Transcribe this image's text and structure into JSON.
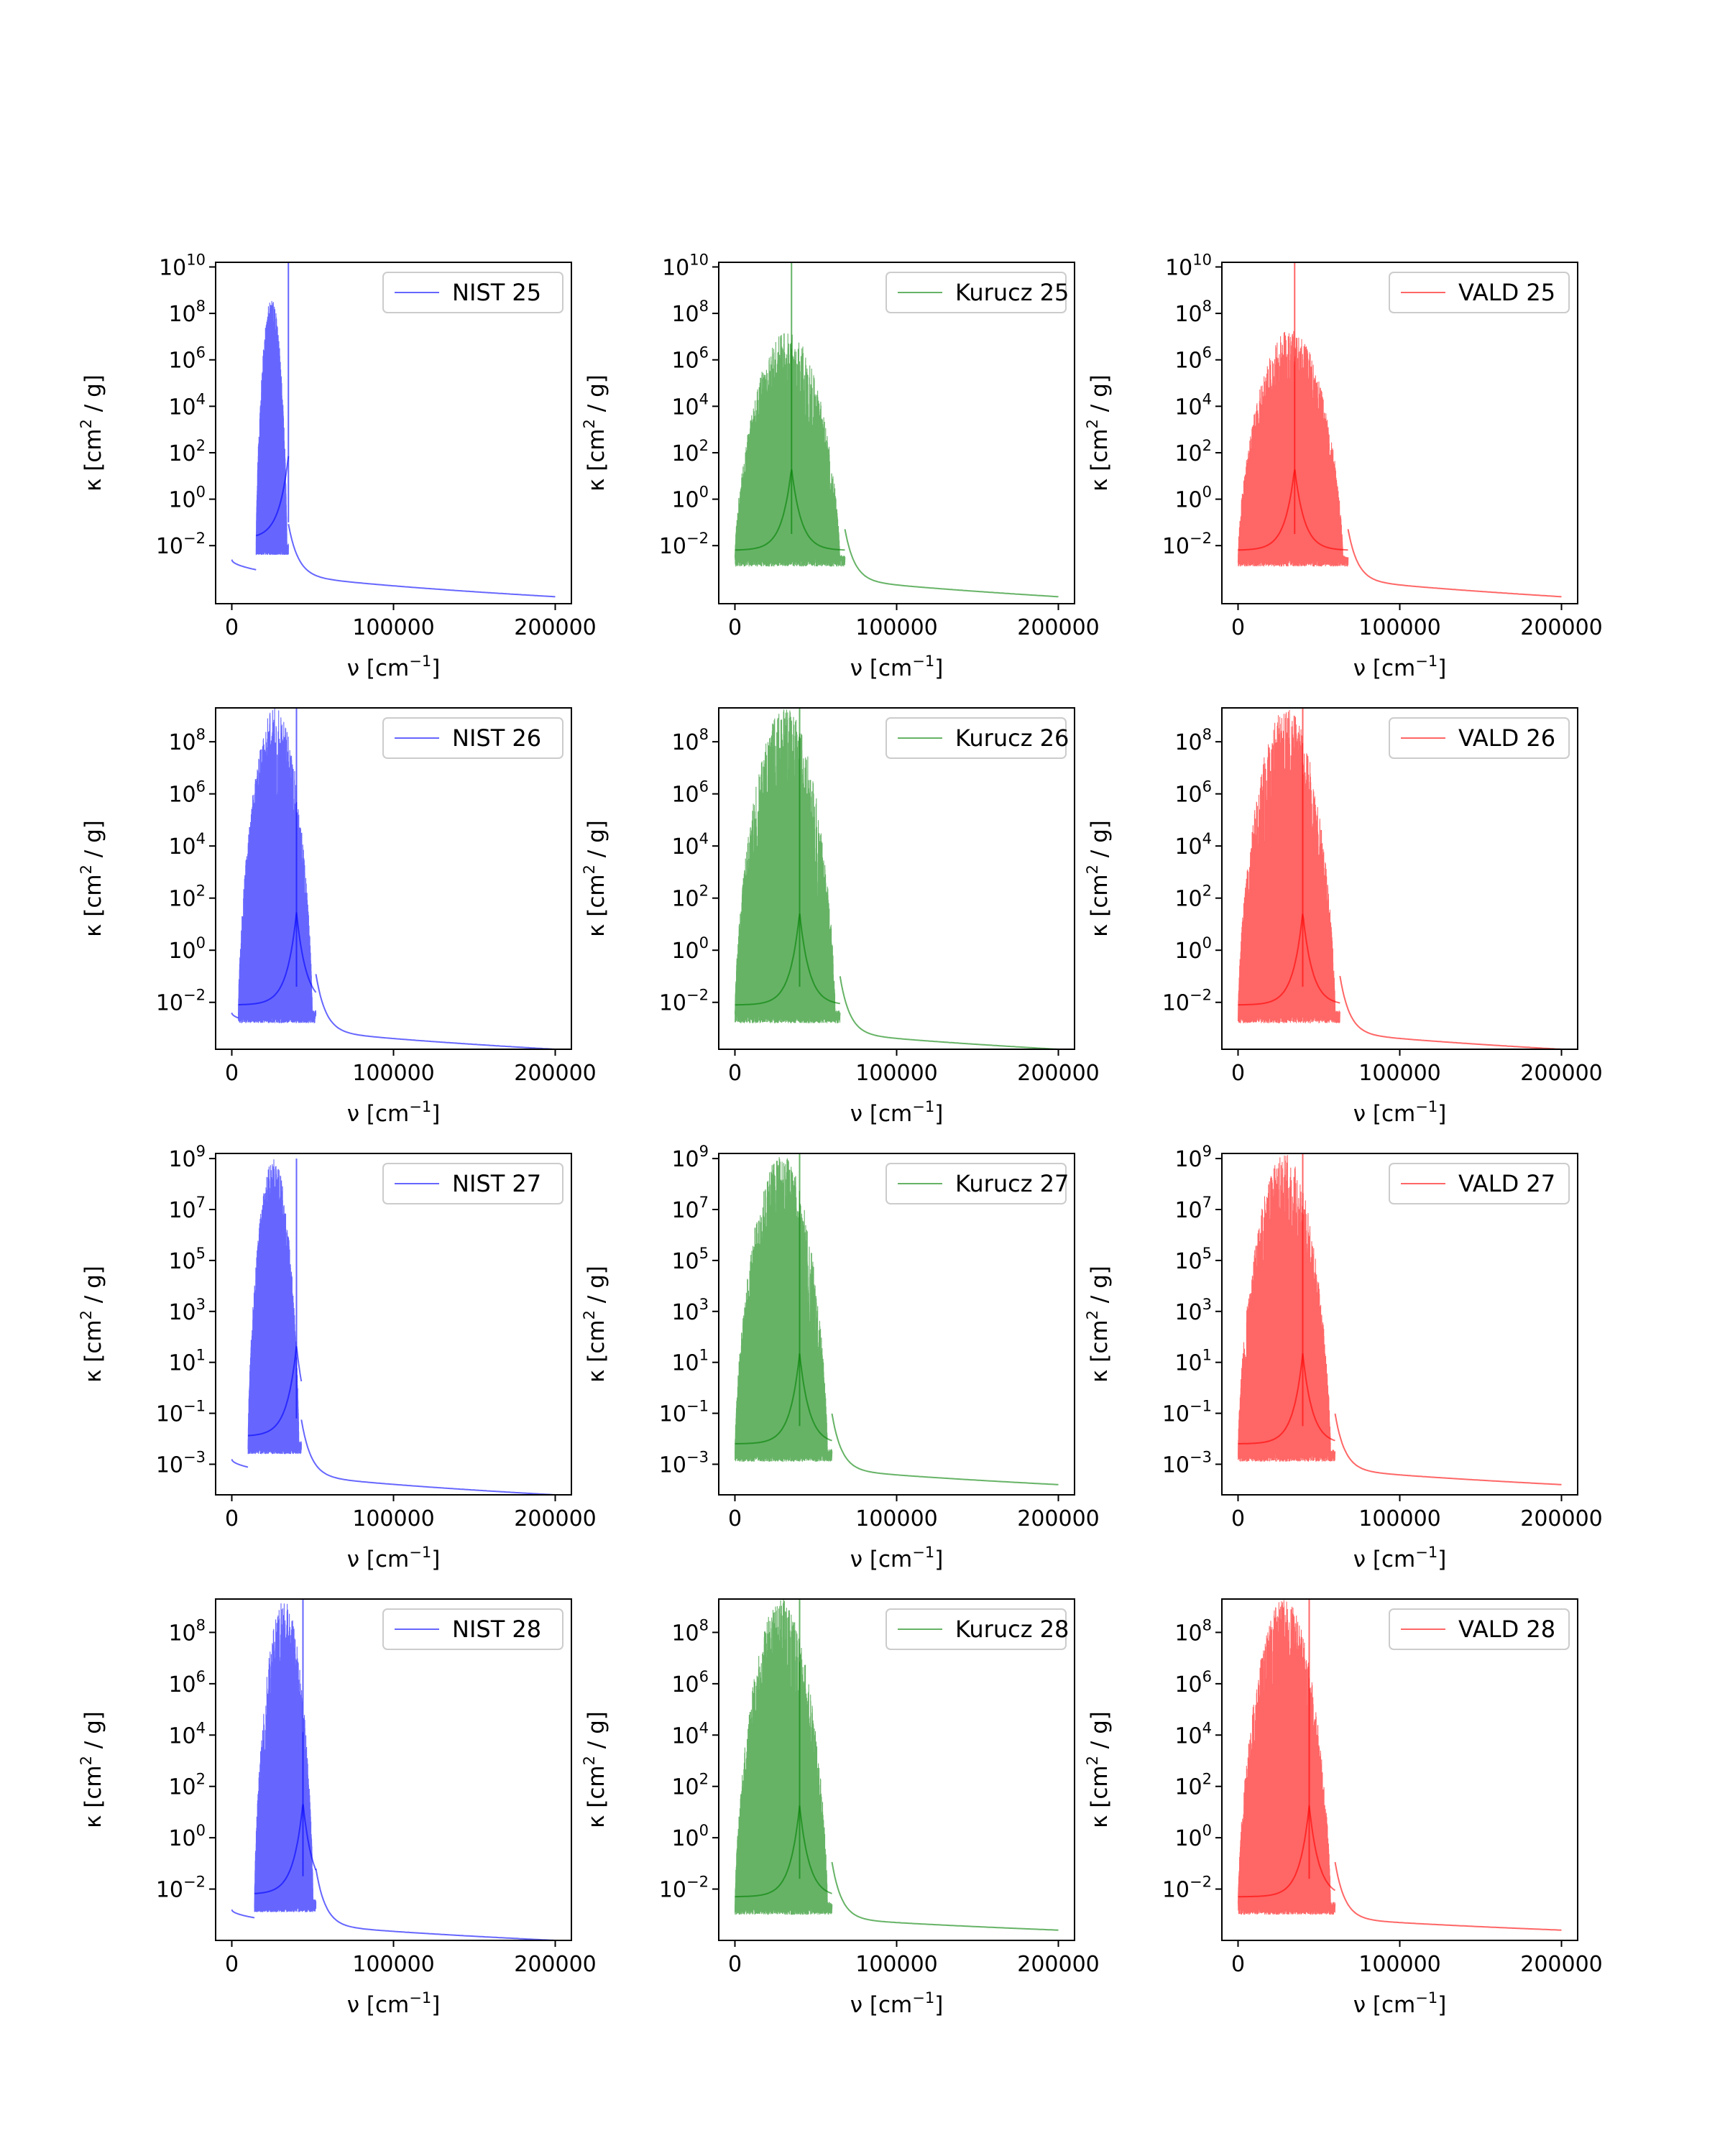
{
  "figure": {
    "axis_labels": {
      "x_main": "ν [cm",
      "x_sup": "−1",
      "x_end": "]",
      "y_main": "κ [cm",
      "y_sup": "2",
      "y_end": " / g]"
    }
  },
  "chart_data": [
    {
      "type": "line",
      "legend": "NIST 25",
      "color": "#0000ff",
      "opacity": 0.6,
      "xlim": [
        -10000,
        210000
      ],
      "ylim_log10": [
        -4.5,
        10.2
      ],
      "xticks": [
        0,
        100000,
        200000
      ],
      "yticks": [
        {
          "base": "10",
          "exp": "−2",
          "v": -2
        },
        {
          "base": "10",
          "exp": "0",
          "v": 0
        },
        {
          "base": "10",
          "exp": "2",
          "v": 2
        },
        {
          "base": "10",
          "exp": "4",
          "v": 4
        },
        {
          "base": "10",
          "exp": "6",
          "v": 6
        },
        {
          "base": "10",
          "exp": "8",
          "v": 8
        },
        {
          "base": "10",
          "exp": "10",
          "v": 10
        }
      ],
      "legend_loc": "upper right",
      "series": {
        "x_start": 0,
        "x_end": 200000,
        "baseline_start_log10": -2.6,
        "baseline_end_log10": -4.2,
        "peak_x": 35000,
        "peak_log10": 10.2,
        "band_start": 15000,
        "band_end": 35000,
        "band_top_log10": 8.7,
        "band_floor_log10": -2.0
      }
    },
    {
      "type": "line",
      "legend": "Kurucz 25",
      "color": "#008000",
      "opacity": 0.6,
      "xlim": [
        -10000,
        210000
      ],
      "ylim_log10": [
        -4.5,
        10.2
      ],
      "xticks": [
        0,
        100000,
        200000
      ],
      "yticks": [
        {
          "base": "10",
          "exp": "−2",
          "v": -2
        },
        {
          "base": "10",
          "exp": "0",
          "v": 0
        },
        {
          "base": "10",
          "exp": "2",
          "v": 2
        },
        {
          "base": "10",
          "exp": "4",
          "v": 4
        },
        {
          "base": "10",
          "exp": "6",
          "v": 6
        },
        {
          "base": "10",
          "exp": "8",
          "v": 8
        },
        {
          "base": "10",
          "exp": "10",
          "v": 10
        }
      ],
      "legend_loc": "upper right",
      "series": {
        "x_start": 0,
        "x_end": 200000,
        "baseline_start_log10": -2.5,
        "baseline_end_log10": -4.2,
        "peak_x": 35000,
        "peak_log10": 10.2,
        "band_start": 0,
        "band_end": 68000,
        "band_top_log10": 7.2,
        "band_floor_log10": -2.5
      }
    },
    {
      "type": "line",
      "legend": "VALD 25",
      "color": "#ff0000",
      "opacity": 0.6,
      "xlim": [
        -10000,
        210000
      ],
      "ylim_log10": [
        -4.5,
        10.2
      ],
      "xticks": [
        0,
        100000,
        200000
      ],
      "yticks": [
        {
          "base": "10",
          "exp": "−2",
          "v": -2
        },
        {
          "base": "10",
          "exp": "0",
          "v": 0
        },
        {
          "base": "10",
          "exp": "2",
          "v": 2
        },
        {
          "base": "10",
          "exp": "4",
          "v": 4
        },
        {
          "base": "10",
          "exp": "6",
          "v": 6
        },
        {
          "base": "10",
          "exp": "8",
          "v": 8
        },
        {
          "base": "10",
          "exp": "10",
          "v": 10
        }
      ],
      "legend_loc": "upper right",
      "series": {
        "x_start": 0,
        "x_end": 200000,
        "baseline_start_log10": -2.5,
        "baseline_end_log10": -4.2,
        "peak_x": 35000,
        "peak_log10": 10.2,
        "band_start": 0,
        "band_end": 68000,
        "band_top_log10": 7.3,
        "band_floor_log10": -2.5
      }
    },
    {
      "type": "line",
      "legend": "NIST 26",
      "color": "#0000ff",
      "opacity": 0.6,
      "xlim": [
        -10000,
        210000
      ],
      "ylim_log10": [
        -3.8,
        9.3
      ],
      "xticks": [
        0,
        100000,
        200000
      ],
      "yticks": [
        {
          "base": "10",
          "exp": "−2",
          "v": -2
        },
        {
          "base": "10",
          "exp": "0",
          "v": 0
        },
        {
          "base": "10",
          "exp": "2",
          "v": 2
        },
        {
          "base": "10",
          "exp": "4",
          "v": 4
        },
        {
          "base": "10",
          "exp": "6",
          "v": 6
        },
        {
          "base": "10",
          "exp": "8",
          "v": 8
        }
      ],
      "legend_loc": "upper right",
      "series": {
        "x_start": 0,
        "x_end": 200000,
        "baseline_start_log10": -2.4,
        "baseline_end_log10": -3.8,
        "peak_x": 40000,
        "peak_log10": 9.3,
        "band_start": 4000,
        "band_end": 52000,
        "band_top_log10": 9.3,
        "band_floor_log10": -2.4
      }
    },
    {
      "type": "line",
      "legend": "Kurucz 26",
      "color": "#008000",
      "opacity": 0.6,
      "xlim": [
        -10000,
        210000
      ],
      "ylim_log10": [
        -3.8,
        9.3
      ],
      "xticks": [
        0,
        100000,
        200000
      ],
      "yticks": [
        {
          "base": "10",
          "exp": "−2",
          "v": -2
        },
        {
          "base": "10",
          "exp": "0",
          "v": 0
        },
        {
          "base": "10",
          "exp": "2",
          "v": 2
        },
        {
          "base": "10",
          "exp": "4",
          "v": 4
        },
        {
          "base": "10",
          "exp": "6",
          "v": 6
        },
        {
          "base": "10",
          "exp": "8",
          "v": 8
        }
      ],
      "legend_loc": "upper right",
      "series": {
        "x_start": 0,
        "x_end": 200000,
        "baseline_start_log10": -2.4,
        "baseline_end_log10": -3.8,
        "peak_x": 40000,
        "peak_log10": 9.3,
        "band_start": 0,
        "band_end": 65000,
        "band_top_log10": 9.3,
        "band_floor_log10": -2.4
      }
    },
    {
      "type": "line",
      "legend": "VALD 26",
      "color": "#ff0000",
      "opacity": 0.6,
      "xlim": [
        -10000,
        210000
      ],
      "ylim_log10": [
        -3.8,
        9.3
      ],
      "xticks": [
        0,
        100000,
        200000
      ],
      "yticks": [
        {
          "base": "10",
          "exp": "−2",
          "v": -2
        },
        {
          "base": "10",
          "exp": "0",
          "v": 0
        },
        {
          "base": "10",
          "exp": "2",
          "v": 2
        },
        {
          "base": "10",
          "exp": "4",
          "v": 4
        },
        {
          "base": "10",
          "exp": "6",
          "v": 6
        },
        {
          "base": "10",
          "exp": "8",
          "v": 8
        }
      ],
      "legend_loc": "upper right",
      "series": {
        "x_start": 0,
        "x_end": 200000,
        "baseline_start_log10": -2.4,
        "baseline_end_log10": -3.8,
        "peak_x": 40000,
        "peak_log10": 9.3,
        "band_start": 0,
        "band_end": 63000,
        "band_top_log10": 9.3,
        "band_floor_log10": -2.4
      }
    },
    {
      "type": "line",
      "legend": "NIST 27",
      "color": "#0000ff",
      "opacity": 0.6,
      "xlim": [
        -10000,
        210000
      ],
      "ylim_log10": [
        -4.2,
        9.2
      ],
      "xticks": [
        0,
        100000,
        200000
      ],
      "yticks": [
        {
          "base": "10",
          "exp": "−3",
          "v": -3
        },
        {
          "base": "10",
          "exp": "−1",
          "v": -1
        },
        {
          "base": "10",
          "exp": "1",
          "v": 1
        },
        {
          "base": "10",
          "exp": "3",
          "v": 3
        },
        {
          "base": "10",
          "exp": "5",
          "v": 5
        },
        {
          "base": "10",
          "exp": "7",
          "v": 7
        },
        {
          "base": "10",
          "exp": "9",
          "v": 9
        }
      ],
      "legend_loc": "upper right",
      "series": {
        "x_start": 0,
        "x_end": 200000,
        "baseline_start_log10": -2.8,
        "baseline_end_log10": -4.2,
        "peak_x": 40000,
        "peak_log10": 9.0,
        "band_start": 10000,
        "band_end": 43000,
        "band_top_log10": 9.0,
        "band_floor_log10": -2.2
      }
    },
    {
      "type": "line",
      "legend": "Kurucz 27",
      "color": "#008000",
      "opacity": 0.6,
      "xlim": [
        -10000,
        210000
      ],
      "ylim_log10": [
        -4.2,
        9.2
      ],
      "xticks": [
        0,
        100000,
        200000
      ],
      "yticks": [
        {
          "base": "10",
          "exp": "−3",
          "v": -3
        },
        {
          "base": "10",
          "exp": "−1",
          "v": -1
        },
        {
          "base": "10",
          "exp": "1",
          "v": 1
        },
        {
          "base": "10",
          "exp": "3",
          "v": 3
        },
        {
          "base": "10",
          "exp": "5",
          "v": 5
        },
        {
          "base": "10",
          "exp": "7",
          "v": 7
        },
        {
          "base": "10",
          "exp": "9",
          "v": 9
        }
      ],
      "legend_loc": "upper right",
      "series": {
        "x_start": 0,
        "x_end": 200000,
        "baseline_start_log10": -2.5,
        "baseline_end_log10": -3.8,
        "peak_x": 40000,
        "peak_log10": 9.2,
        "band_start": 0,
        "band_end": 60000,
        "band_top_log10": 9.2,
        "band_floor_log10": -2.5
      }
    },
    {
      "type": "line",
      "legend": "VALD 27",
      "color": "#ff0000",
      "opacity": 0.6,
      "xlim": [
        -10000,
        210000
      ],
      "ylim_log10": [
        -4.2,
        9.2
      ],
      "xticks": [
        0,
        100000,
        200000
      ],
      "yticks": [
        {
          "base": "10",
          "exp": "−3",
          "v": -3
        },
        {
          "base": "10",
          "exp": "−1",
          "v": -1
        },
        {
          "base": "10",
          "exp": "1",
          "v": 1
        },
        {
          "base": "10",
          "exp": "3",
          "v": 3
        },
        {
          "base": "10",
          "exp": "5",
          "v": 5
        },
        {
          "base": "10",
          "exp": "7",
          "v": 7
        },
        {
          "base": "10",
          "exp": "9",
          "v": 9
        }
      ],
      "legend_loc": "upper right",
      "series": {
        "x_start": 0,
        "x_end": 200000,
        "baseline_start_log10": -2.5,
        "baseline_end_log10": -3.8,
        "peak_x": 40000,
        "peak_log10": 9.2,
        "band_start": 0,
        "band_end": 60000,
        "band_top_log10": 9.2,
        "band_floor_log10": -2.5
      }
    },
    {
      "type": "line",
      "legend": "NIST 28",
      "color": "#0000ff",
      "opacity": 0.6,
      "xlim": [
        -10000,
        210000
      ],
      "ylim_log10": [
        -4.0,
        9.3
      ],
      "xticks": [
        0,
        100000,
        200000
      ],
      "yticks": [
        {
          "base": "10",
          "exp": "−2",
          "v": -2
        },
        {
          "base": "10",
          "exp": "0",
          "v": 0
        },
        {
          "base": "10",
          "exp": "2",
          "v": 2
        },
        {
          "base": "10",
          "exp": "4",
          "v": 4
        },
        {
          "base": "10",
          "exp": "6",
          "v": 6
        },
        {
          "base": "10",
          "exp": "8",
          "v": 8
        }
      ],
      "legend_loc": "upper right",
      "series": {
        "x_start": 0,
        "x_end": 200000,
        "baseline_start_log10": -2.8,
        "baseline_end_log10": -4.0,
        "peak_x": 44000,
        "peak_log10": 9.3,
        "band_start": 14000,
        "band_end": 52000,
        "band_top_log10": 9.3,
        "band_floor_log10": -2.5
      }
    },
    {
      "type": "line",
      "legend": "Kurucz 28",
      "color": "#008000",
      "opacity": 0.6,
      "xlim": [
        -10000,
        210000
      ],
      "ylim_log10": [
        -4.0,
        9.3
      ],
      "xticks": [
        0,
        100000,
        200000
      ],
      "yticks": [
        {
          "base": "10",
          "exp": "−2",
          "v": -2
        },
        {
          "base": "10",
          "exp": "0",
          "v": 0
        },
        {
          "base": "10",
          "exp": "2",
          "v": 2
        },
        {
          "base": "10",
          "exp": "4",
          "v": 4
        },
        {
          "base": "10",
          "exp": "6",
          "v": 6
        },
        {
          "base": "10",
          "exp": "8",
          "v": 8
        }
      ],
      "legend_loc": "upper right",
      "series": {
        "x_start": 0,
        "x_end": 200000,
        "baseline_start_log10": -2.6,
        "baseline_end_log10": -3.6,
        "peak_x": 40000,
        "peak_log10": 9.3,
        "band_start": 0,
        "band_end": 60000,
        "band_top_log10": 9.3,
        "band_floor_log10": -2.6
      }
    },
    {
      "type": "line",
      "legend": "VALD 28",
      "color": "#ff0000",
      "opacity": 0.6,
      "xlim": [
        -10000,
        210000
      ],
      "ylim_log10": [
        -4.0,
        9.3
      ],
      "xticks": [
        0,
        100000,
        200000
      ],
      "yticks": [
        {
          "base": "10",
          "exp": "−2",
          "v": -2
        },
        {
          "base": "10",
          "exp": "0",
          "v": 0
        },
        {
          "base": "10",
          "exp": "2",
          "v": 2
        },
        {
          "base": "10",
          "exp": "4",
          "v": 4
        },
        {
          "base": "10",
          "exp": "6",
          "v": 6
        },
        {
          "base": "10",
          "exp": "8",
          "v": 8
        }
      ],
      "legend_loc": "upper right",
      "series": {
        "x_start": 0,
        "x_end": 200000,
        "baseline_start_log10": -2.6,
        "baseline_end_log10": -3.6,
        "peak_x": 44000,
        "peak_log10": 9.3,
        "band_start": 0,
        "band_end": 60000,
        "band_top_log10": 9.3,
        "band_floor_log10": -2.6
      }
    }
  ]
}
